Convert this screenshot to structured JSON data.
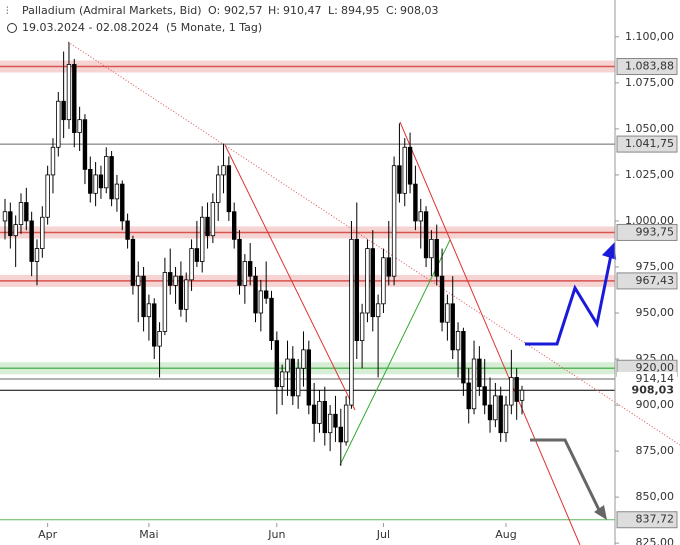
{
  "header": {
    "title": "Palladium (Admiral Markets, Bid)",
    "o_label": "O:",
    "o": "902,57",
    "h_label": "H:",
    "h": "910,47",
    "l_label": "L:",
    "l": "894,95",
    "c_label": "C:",
    "c": "908,03",
    "range": "19.03.2024 - 02.08.2024",
    "span": "(5 Monate, 1 Tag)"
  },
  "chart_data": {
    "type": "candlestick",
    "categories": [
      null,
      null,
      null,
      null,
      null,
      null,
      null,
      null,
      "Apr",
      null,
      null,
      null,
      null,
      null,
      null,
      null,
      null,
      null,
      null,
      null,
      null,
      null,
      null,
      null,
      null,
      null,
      null,
      "Mai",
      null,
      null,
      null,
      null,
      null,
      null,
      null,
      null,
      null,
      null,
      null,
      null,
      null,
      null,
      null,
      null,
      null,
      null,
      null,
      null,
      null,
      null,
      null,
      "Jun",
      null,
      null,
      null,
      null,
      null,
      null,
      null,
      null,
      null,
      null,
      null,
      null,
      null,
      null,
      null,
      null,
      null,
      null,
      null,
      "Jul",
      null,
      null,
      null,
      null,
      null,
      null,
      null,
      null,
      null,
      null,
      null,
      null,
      null,
      null,
      null,
      null,
      null,
      null,
      null,
      null,
      null,
      null,
      "Aug",
      null
    ],
    "ohlc": [
      [
        1000,
        1012,
        990,
        1005
      ],
      [
        1005,
        1010,
        985,
        992
      ],
      [
        992,
        1003,
        975,
        998
      ],
      [
        998,
        1015,
        993,
        1010
      ],
      [
        1010,
        1018,
        995,
        1000
      ],
      [
        1000,
        1005,
        970,
        978
      ],
      [
        978,
        990,
        965,
        985
      ],
      [
        985,
        1008,
        980,
        1002
      ],
      [
        1002,
        1030,
        998,
        1025
      ],
      [
        1025,
        1045,
        1015,
        1040
      ],
      [
        1040,
        1070,
        1035,
        1065
      ],
      [
        1065,
        1092,
        1045,
        1055
      ],
      [
        1055,
        1097,
        1050,
        1085
      ],
      [
        1085,
        1088,
        1040,
        1048
      ],
      [
        1048,
        1062,
        1038,
        1055
      ],
      [
        1055,
        1058,
        1020,
        1028
      ],
      [
        1028,
        1035,
        1010,
        1015
      ],
      [
        1015,
        1032,
        1008,
        1025
      ],
      [
        1025,
        1030,
        1012,
        1018
      ],
      [
        1018,
        1040,
        1015,
        1035
      ],
      [
        1035,
        1038,
        1008,
        1012
      ],
      [
        1012,
        1025,
        1005,
        1020
      ],
      [
        1020,
        1022,
        995,
        1000
      ],
      [
        1000,
        1004,
        985,
        990
      ],
      [
        990,
        992,
        960,
        965
      ],
      [
        965,
        978,
        945,
        970
      ],
      [
        970,
        975,
        940,
        948
      ],
      [
        948,
        960,
        935,
        955
      ],
      [
        955,
        958,
        925,
        932
      ],
      [
        932,
        945,
        915,
        940
      ],
      [
        940,
        980,
        938,
        972
      ],
      [
        972,
        985,
        960,
        965
      ],
      [
        965,
        975,
        955,
        970
      ],
      [
        970,
        978,
        948,
        952
      ],
      [
        952,
        972,
        945,
        968
      ],
      [
        968,
        990,
        962,
        985
      ],
      [
        985,
        1000,
        975,
        978
      ],
      [
        978,
        1008,
        972,
        1002
      ],
      [
        1002,
        1010,
        985,
        992
      ],
      [
        992,
        1015,
        988,
        1010
      ],
      [
        1010,
        1030,
        1000,
        1025
      ],
      [
        1025,
        1042,
        1015,
        1030
      ],
      [
        1030,
        1035,
        1000,
        1005
      ],
      [
        1005,
        1010,
        985,
        990
      ],
      [
        990,
        995,
        960,
        965
      ],
      [
        965,
        982,
        955,
        978
      ],
      [
        978,
        988,
        965,
        970
      ],
      [
        970,
        975,
        945,
        950
      ],
      [
        950,
        968,
        940,
        962
      ],
      [
        962,
        978,
        955,
        958
      ],
      [
        958,
        962,
        930,
        935
      ],
      [
        935,
        940,
        895,
        910
      ],
      [
        910,
        922,
        900,
        918
      ],
      [
        918,
        935,
        905,
        925
      ],
      [
        925,
        932,
        900,
        905
      ],
      [
        905,
        925,
        898,
        920
      ],
      [
        920,
        940,
        910,
        930
      ],
      [
        930,
        935,
        895,
        900
      ],
      [
        900,
        912,
        880,
        890
      ],
      [
        890,
        908,
        885,
        902
      ],
      [
        902,
        910,
        878,
        885
      ],
      [
        885,
        900,
        875,
        895
      ],
      [
        895,
        905,
        880,
        888
      ],
      [
        888,
        898,
        867,
        880
      ],
      [
        880,
        905,
        878,
        900
      ],
      [
        900,
        1000,
        898,
        990
      ],
      [
        990,
        1010,
        925,
        935
      ],
      [
        935,
        955,
        920,
        950
      ],
      [
        950,
        990,
        945,
        985
      ],
      [
        985,
        995,
        940,
        948
      ],
      [
        948,
        960,
        915,
        955
      ],
      [
        955,
        985,
        950,
        980
      ],
      [
        980,
        1000,
        965,
        970
      ],
      [
        970,
        1035,
        965,
        1030
      ],
      [
        1030,
        1053,
        1010,
        1015
      ],
      [
        1015,
        1045,
        1008,
        1040
      ],
      [
        1040,
        1048,
        1015,
        1020
      ],
      [
        1020,
        1030,
        995,
        1000
      ],
      [
        1000,
        1012,
        985,
        1005
      ],
      [
        1005,
        1008,
        975,
        980
      ],
      [
        980,
        995,
        970,
        990
      ],
      [
        990,
        998,
        965,
        970
      ],
      [
        970,
        985,
        940,
        945
      ],
      [
        945,
        960,
        935,
        955
      ],
      [
        955,
        970,
        925,
        930
      ],
      [
        930,
        945,
        915,
        940
      ],
      [
        940,
        942,
        905,
        912
      ],
      [
        912,
        920,
        890,
        898
      ],
      [
        898,
        935,
        895,
        925
      ],
      [
        925,
        932,
        905,
        910
      ],
      [
        910,
        925,
        895,
        900
      ],
      [
        900,
        915,
        885,
        892
      ],
      [
        892,
        912,
        888,
        905
      ],
      [
        905,
        910,
        880,
        885
      ],
      [
        885,
        905,
        880,
        900
      ],
      [
        900,
        930,
        895,
        915
      ],
      [
        915,
        920,
        892,
        902
      ],
      [
        902.57,
        910.47,
        894.95,
        908.03
      ]
    ],
    "up_color": "#ffffff",
    "down_color": "#000000",
    "ylim": [
      824,
      1120
    ],
    "yticks": [
      {
        "value": 1100,
        "label": "1.100,00"
      },
      {
        "value": 1075,
        "label": "1.075,00"
      },
      {
        "value": 1050,
        "label": "1.050,00"
      },
      {
        "value": 1025,
        "label": "1.025,00"
      },
      {
        "value": 1000,
        "label": "1.000,00"
      },
      {
        "value": 975,
        "label": "975,00"
      },
      {
        "value": 950,
        "label": "950,00"
      },
      {
        "value": 925,
        "label": "925,00"
      },
      {
        "value": 900,
        "label": "900,00"
      },
      {
        "value": 875,
        "label": "875,00"
      },
      {
        "value": 850,
        "label": "850,00"
      },
      {
        "value": 825,
        "label": "825,00"
      }
    ],
    "levels": [
      {
        "value": 1083.88,
        "label": "1.083,88",
        "color": "#d9534f",
        "band": true,
        "boxed": true
      },
      {
        "value": 1041.75,
        "label": "1.041,75",
        "color": "#666666",
        "band": false,
        "boxed": true
      },
      {
        "value": 993.75,
        "label": "993,75",
        "color": "#d9534f",
        "band": true,
        "boxed": true
      },
      {
        "value": 967.43,
        "label": "967,43",
        "color": "#d9534f",
        "band": true,
        "boxed": true
      },
      {
        "value": 920,
        "label": "920,00",
        "color": "#5cb85c",
        "band": true,
        "boxed": true
      },
      {
        "value": 914.14,
        "label": "914,14",
        "color": "#666666",
        "band": false,
        "boxed": false
      },
      {
        "value": 908.03,
        "label": "908,03",
        "color": "#000000",
        "band": false,
        "boxed": false
      },
      {
        "value": 837.72,
        "label": "837,72",
        "color": "#5cb85c",
        "band": false,
        "boxed": true
      }
    ]
  }
}
